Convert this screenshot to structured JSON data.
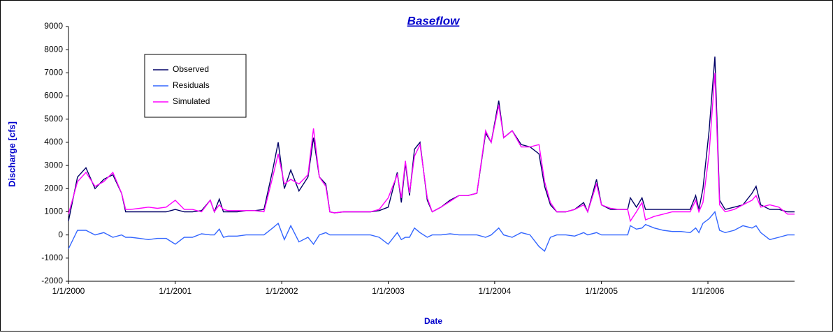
{
  "chart_data": {
    "type": "line",
    "title": "Baseflow",
    "xlabel": "Date",
    "ylabel": "Discharge [cfs]",
    "x": [
      "1/1/2000",
      "2/1/2000",
      "3/1/2000",
      "4/1/2000",
      "5/1/2000",
      "6/1/2000",
      "7/1/2000",
      "7/15/2000",
      "8/1/2000",
      "9/1/2000",
      "10/1/2000",
      "11/1/2000",
      "12/1/2000",
      "1/1/2001",
      "2/1/2001",
      "3/1/2001",
      "4/1/2001",
      "5/1/2001",
      "5/15/2001",
      "6/1/2001",
      "6/15/2001",
      "7/1/2001",
      "8/1/2001",
      "9/1/2001",
      "10/1/2001",
      "11/1/2001",
      "12/1/2001",
      "12/20/2001",
      "1/10/2002",
      "2/1/2002",
      "3/1/2002",
      "4/1/2002",
      "4/20/2002",
      "5/10/2002",
      "6/1/2002",
      "6/15/2002",
      "7/1/2002",
      "8/1/2002",
      "9/1/2002",
      "10/1/2002",
      "11/1/2002",
      "12/1/2002",
      "1/1/2003",
      "2/1/2003",
      "2/15/2003",
      "3/1/2003",
      "3/15/2003",
      "4/1/2003",
      "4/20/2003",
      "5/15/2003",
      "6/1/2003",
      "7/1/2003",
      "8/1/2003",
      "9/1/2003",
      "10/1/2003",
      "11/1/2003",
      "12/1/2003",
      "12/20/2003",
      "1/15/2004",
      "2/1/2004",
      "3/1/2004",
      "4/1/2004",
      "5/1/2004",
      "6/1/2004",
      "6/20/2004",
      "7/10/2004",
      "8/1/2004",
      "9/1/2004",
      "10/1/2004",
      "11/1/2004",
      "11/15/2004",
      "12/15/2004",
      "1/1/2005",
      "2/1/2005",
      "3/1/2005",
      "4/1/2005",
      "4/10/2005",
      "5/1/2005",
      "5/20/2005",
      "6/1/2005",
      "7/1/2005",
      "8/1/2005",
      "9/1/2005",
      "10/1/2005",
      "11/1/2005",
      "11/20/2005",
      "12/1/2005",
      "12/15/2005",
      "1/5/2006",
      "1/25/2006",
      "2/10/2006",
      "3/1/2006",
      "4/1/2006",
      "5/1/2006",
      "6/1/2006",
      "6/15/2006",
      "7/1/2006",
      "8/1/2006",
      "9/1/2006",
      "10/1/2006",
      "10/25/2006"
    ],
    "series": [
      {
        "name": "Observed",
        "color": "#000066",
        "values": [
          600,
          2500,
          2900,
          2000,
          2400,
          2600,
          1800,
          1000,
          1000,
          1000,
          1000,
          1000,
          1000,
          1100,
          1000,
          1000,
          1050,
          1500,
          1000,
          1550,
          1000,
          1000,
          1000,
          1050,
          1050,
          1100,
          2800,
          4000,
          2000,
          2800,
          1900,
          2500,
          4200,
          2500,
          2200,
          1000,
          950,
          1000,
          1000,
          1000,
          1000,
          1050,
          1200,
          2700,
          1400,
          3100,
          1700,
          3700,
          4000,
          1500,
          1000,
          1200,
          1500,
          1700,
          1700,
          1800,
          4400,
          4000,
          5800,
          4200,
          4500,
          3900,
          3800,
          3500,
          2100,
          1300,
          1000,
          1000,
          1100,
          1400,
          1000,
          2400,
          1300,
          1100,
          1100,
          1100,
          1600,
          1200,
          1600,
          1100,
          1100,
          1100,
          1100,
          1100,
          1100,
          1700,
          1100,
          2000,
          4500,
          7700,
          1500,
          1100,
          1200,
          1300,
          1800,
          2100,
          1300,
          1100,
          1100,
          1000,
          1000
        ]
      },
      {
        "name": "Residuals",
        "color": "#3366ff",
        "values": [
          -600,
          200,
          200,
          0,
          100,
          -100,
          0,
          -100,
          -100,
          -150,
          -200,
          -150,
          -150,
          -400,
          -100,
          -100,
          50,
          0,
          0,
          250,
          -100,
          -50,
          -50,
          0,
          0,
          0,
          300,
          500,
          -200,
          400,
          -300,
          -100,
          -400,
          0,
          100,
          0,
          0,
          0,
          0,
          0,
          0,
          -100,
          -400,
          100,
          -200,
          -100,
          -100,
          300,
          100,
          -100,
          0,
          0,
          50,
          0,
          0,
          0,
          -100,
          0,
          300,
          0,
          -100,
          100,
          0,
          -500,
          -700,
          -100,
          0,
          0,
          -50,
          100,
          0,
          100,
          0,
          0,
          0,
          0,
          400,
          250,
          300,
          450,
          300,
          200,
          150,
          150,
          100,
          300,
          100,
          500,
          700,
          1000,
          200,
          100,
          200,
          400,
          300,
          400,
          100,
          -200,
          -100,
          0,
          0
        ]
      },
      {
        "name": "Simulated",
        "color": "#ff00ff",
        "values": [
          900,
          2300,
          2700,
          2100,
          2300,
          2700,
          1800,
          1100,
          1100,
          1150,
          1200,
          1150,
          1200,
          1500,
          1100,
          1100,
          1000,
          1500,
          1000,
          1300,
          1100,
          1050,
          1050,
          1050,
          1050,
          1000,
          2500,
          3500,
          2200,
          2400,
          2200,
          2600,
          4600,
          2500,
          2100,
          1000,
          950,
          1000,
          1000,
          1000,
          1000,
          1100,
          1600,
          2600,
          1600,
          3200,
          1800,
          3400,
          3900,
          1600,
          1000,
          1200,
          1450,
          1700,
          1700,
          1800,
          4500,
          4000,
          5600,
          4200,
          4500,
          3800,
          3800,
          3900,
          2300,
          1400,
          1000,
          1000,
          1100,
          1300,
          1000,
          2200,
          1300,
          1150,
          1100,
          1100,
          600,
          1000,
          1400,
          650,
          800,
          900,
          1000,
          1000,
          1000,
          1500,
          1000,
          1400,
          3500,
          7000,
          1300,
          1000,
          1100,
          1300,
          1500,
          1700,
          1200,
          1300,
          1200,
          900,
          900
        ]
      }
    ],
    "xlim": [
      "1/1/2000",
      "10/25/2006"
    ],
    "xticks": [
      "1/1/2000",
      "1/1/2001",
      "1/1/2002",
      "1/1/2003",
      "1/1/2004",
      "1/1/2005",
      "1/1/2006"
    ],
    "ylim": [
      -2000,
      9000
    ],
    "yticks": [
      -2000,
      -1000,
      0,
      1000,
      2000,
      3000,
      4000,
      5000,
      6000,
      7000,
      8000,
      9000
    ],
    "legend": "upper left",
    "grid": false
  }
}
